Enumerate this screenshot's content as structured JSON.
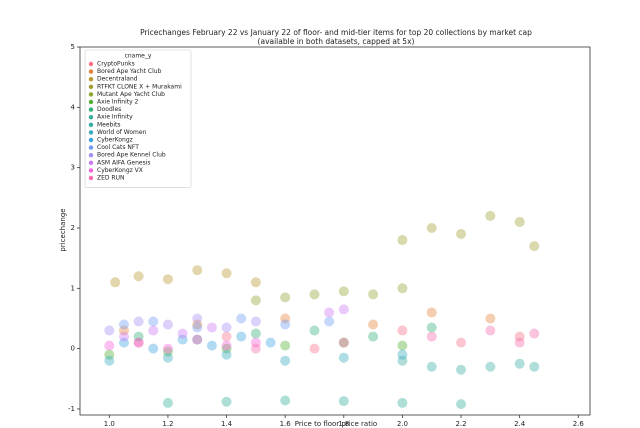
{
  "chart_data": {
    "type": "scatter",
    "title": "Pricechanges February 22 vs January 22 of floor- and mid-tier items for top 20 collections by market cap",
    "subtitle": "(available in both datasets, capped at 5x)",
    "x_label": "Price to floor price ratio",
    "y_label": "pricechange",
    "legend_title": "cname_y",
    "legend_position": "upper left",
    "xlim": [
      0.9,
      2.64
    ],
    "ylim": [
      -1.1,
      5
    ],
    "xticks": [
      {
        "value": 1.0,
        "label": "1.0"
      },
      1.2,
      1.4,
      1.6,
      1.8,
      {
        "value": 2.0,
        "label": "2.0"
      },
      2.2,
      2.4,
      2.6
    ],
    "yticks": [
      -1,
      0,
      1,
      2,
      3,
      4,
      5
    ],
    "series": [
      {
        "name": "CryptoPunks",
        "color": "#f77189",
        "x": [
          1.1,
          1.4,
          1.7,
          2.0,
          2.2,
          2.4
        ],
        "values": [
          0.1,
          0.2,
          0.0,
          0.3,
          0.1,
          0.2
        ]
      },
      {
        "name": "Bored Ape Yacht Club",
        "color": "#e5823a",
        "x": [
          1.05,
          1.3,
          1.6,
          1.9,
          2.1,
          2.3
        ],
        "values": [
          0.3,
          0.4,
          0.5,
          0.4,
          0.6,
          0.5
        ]
      },
      {
        "name": "Decentraland",
        "color": "#b9972f",
        "x": [
          1.02,
          1.1,
          1.2,
          1.3,
          1.4,
          1.5
        ],
        "values": [
          1.1,
          1.2,
          1.15,
          1.3,
          1.25,
          1.1
        ]
      },
      {
        "name": "RTFKT CLONE X + Murakami",
        "color": "#a39d31",
        "x": [
          2.0,
          2.1,
          2.2,
          2.3,
          2.4,
          2.45
        ],
        "values": [
          1.8,
          2.0,
          1.9,
          2.2,
          2.1,
          1.7
        ]
      },
      {
        "name": "Mutant Ape Yacht Club",
        "color": "#8fa431",
        "x": [
          1.5,
          1.6,
          1.7,
          1.8,
          1.9,
          2.0
        ],
        "values": [
          0.8,
          0.85,
          0.9,
          0.95,
          0.9,
          1.0
        ]
      },
      {
        "name": "Axie Infinity 2",
        "color": "#4fb032",
        "x": [
          1.0,
          1.2,
          1.4,
          1.6,
          1.8,
          2.0
        ],
        "values": [
          -0.1,
          -0.05,
          0.0,
          0.05,
          0.1,
          0.05
        ]
      },
      {
        "name": "Doodles",
        "color": "#33b07a",
        "x": [
          1.1,
          1.3,
          1.5,
          1.7,
          1.9,
          2.1
        ],
        "values": [
          0.2,
          0.15,
          0.25,
          0.3,
          0.2,
          0.35
        ]
      },
      {
        "name": "Axie Infinity",
        "color": "#35ae99",
        "x": [
          1.2,
          1.4,
          1.6,
          1.8,
          2.0,
          2.2
        ],
        "values": [
          -0.9,
          -0.88,
          -0.86,
          -0.87,
          -0.9,
          -0.92
        ]
      },
      {
        "name": "Meebits",
        "color": "#36ada4",
        "x": [
          2.1,
          2.2,
          2.3,
          2.4,
          2.45,
          2.0
        ],
        "values": [
          -0.3,
          -0.35,
          -0.3,
          -0.25,
          -0.3,
          -0.2
        ]
      },
      {
        "name": "World of Women",
        "color": "#38a9c0",
        "x": [
          1.0,
          1.2,
          1.4,
          1.6,
          1.8,
          2.0
        ],
        "values": [
          -0.2,
          -0.15,
          -0.1,
          -0.2,
          -0.15,
          -0.1
        ]
      },
      {
        "name": "CyberKongz",
        "color": "#3ba2e0",
        "x": [
          1.05,
          1.15,
          1.25,
          1.35,
          1.45,
          1.55
        ],
        "values": [
          0.1,
          0.0,
          0.15,
          0.05,
          0.2,
          0.1
        ]
      },
      {
        "name": "Cool Cats NFT",
        "color": "#6f9af4",
        "x": [
          1.05,
          1.15,
          1.3,
          1.45,
          1.6,
          1.75
        ],
        "values": [
          0.4,
          0.45,
          0.35,
          0.5,
          0.4,
          0.45
        ]
      },
      {
        "name": "Bored Ape Kennel Club",
        "color": "#a48cf4",
        "x": [
          1.0,
          1.1,
          1.2,
          1.3,
          1.4,
          1.5
        ],
        "values": [
          0.3,
          0.45,
          0.4,
          0.5,
          0.35,
          0.45
        ]
      },
      {
        "name": "ASM AIFA Genesis",
        "color": "#cc7af4",
        "x": [
          1.05,
          1.15,
          1.25,
          1.35,
          1.75,
          1.8
        ],
        "values": [
          0.2,
          0.3,
          0.25,
          0.35,
          0.6,
          0.65
        ]
      },
      {
        "name": "CyberKongz VX",
        "color": "#f461dd",
        "x": [
          1.0,
          1.1,
          1.2,
          1.3,
          1.4,
          1.5
        ],
        "values": [
          0.05,
          0.1,
          0.0,
          0.15,
          0.05,
          0.1
        ]
      },
      {
        "name": "ZED RUN",
        "color": "#f66bad",
        "x": [
          1.5,
          1.8,
          2.1,
          2.3,
          2.4,
          2.45
        ],
        "values": [
          0.0,
          0.1,
          0.2,
          0.3,
          0.1,
          0.25
        ]
      }
    ]
  }
}
